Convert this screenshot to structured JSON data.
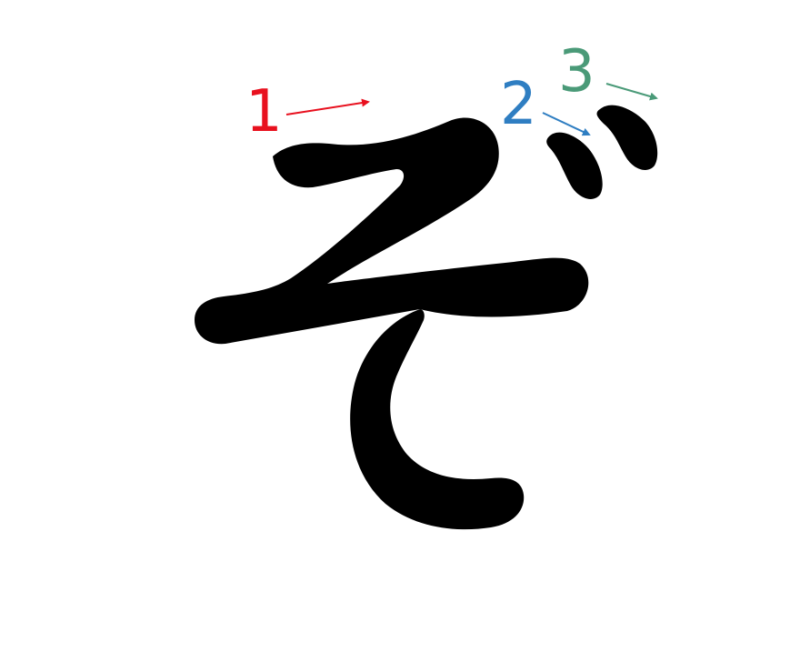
{
  "character": "ぞ",
  "colors": {
    "glyph": "#000000",
    "background": "#ffffff",
    "stroke_1": "#e8101e",
    "stroke_2": "#2f7ec2",
    "stroke_3": "#4a9a78"
  },
  "steps": [
    {
      "number": "1",
      "color_key": "stroke_1",
      "icon": "arrow-right-icon"
    },
    {
      "number": "2",
      "color_key": "stroke_2",
      "icon": "arrow-down-right-icon"
    },
    {
      "number": "3",
      "color_key": "stroke_3",
      "icon": "arrow-down-right-icon"
    }
  ]
}
